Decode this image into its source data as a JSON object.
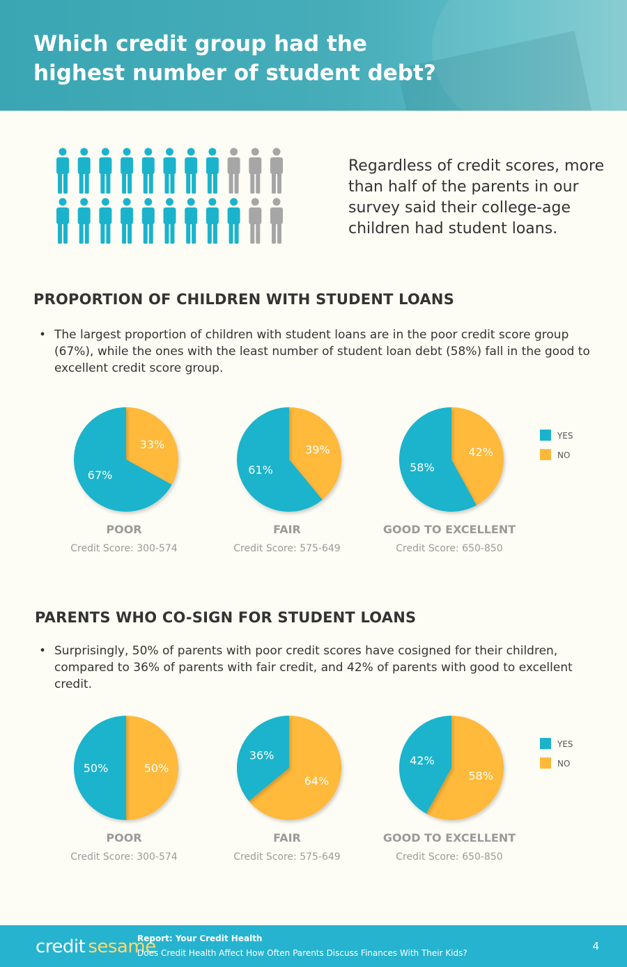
{
  "header": {
    "title": "Which credit group had the highest number of student debt?"
  },
  "intro": {
    "text": "Regardless of credit scores, more than half of the parents in our survey said their college-age children had student loans.",
    "people_rows": [
      {
        "total": 11,
        "highlighted": 8
      },
      {
        "total": 11,
        "highlighted": 9
      }
    ],
    "colors": {
      "highlight": "#1bb3cc",
      "muted": "#a6a6a6"
    }
  },
  "section1": {
    "title": "PROPORTION OF CHILDREN WITH STUDENT LOANS",
    "bullet": "The largest proportion of children with student loans are in the poor credit score group (67%), while the ones with the least number of student loan debt (58%) fall in the good to excellent credit score group."
  },
  "section2": {
    "title": "PARENTS WHO CO-SIGN FOR STUDENT LOANS",
    "bullet": "Surprisingly, 50% of parents with poor credit scores have cosigned for their children, compared to 36% of parents with fair credit, and 42% of parents with good to excellent credit."
  },
  "chart_data": [
    {
      "type": "pie",
      "colors": {
        "YES": "#1bb3cc",
        "NO": "#ffb93a"
      },
      "legend": [
        "YES",
        "NO"
      ],
      "legend_position": "right",
      "pies": [
        {
          "group": "POOR",
          "score": "Credit Score: 300-574",
          "yes": 67,
          "no": 33,
          "yes_label": "67%",
          "no_label": "33%"
        },
        {
          "group": "FAIR",
          "score": "Credit Score: 575-649",
          "yes": 61,
          "no": 39,
          "yes_label": "61%",
          "no_label": "39%"
        },
        {
          "group": "GOOD TO EXCELLENT",
          "score": "Credit Score: 650-850",
          "yes": 58,
          "no": 42,
          "yes_label": "58%",
          "no_label": "42%"
        }
      ]
    },
    {
      "type": "pie",
      "colors": {
        "YES": "#1bb3cc",
        "NO": "#ffb93a"
      },
      "legend": [
        "YES",
        "NO"
      ],
      "legend_position": "right",
      "pies": [
        {
          "group": "POOR",
          "score": "Credit Score: 300-574",
          "yes": 50,
          "no": 50,
          "yes_label": "50%",
          "no_label": "50%"
        },
        {
          "group": "FAIR",
          "score": "Credit Score: 575-649",
          "yes": 36,
          "no": 64,
          "yes_label": "36%",
          "no_label": "64%"
        },
        {
          "group": "GOOD TO EXCELLENT",
          "score": "Credit Score: 650-850",
          "yes": 42,
          "no": 58,
          "yes_label": "42%",
          "no_label": "58%"
        }
      ]
    }
  ],
  "footer": {
    "logo_part1": "credit",
    "logo_part2": "sesame",
    "report_title": "Report: Your Credit Health",
    "report_subtitle": "Does Credit Health Affect How Often Parents Discuss Finances With Their Kids?",
    "page_number": "4"
  }
}
